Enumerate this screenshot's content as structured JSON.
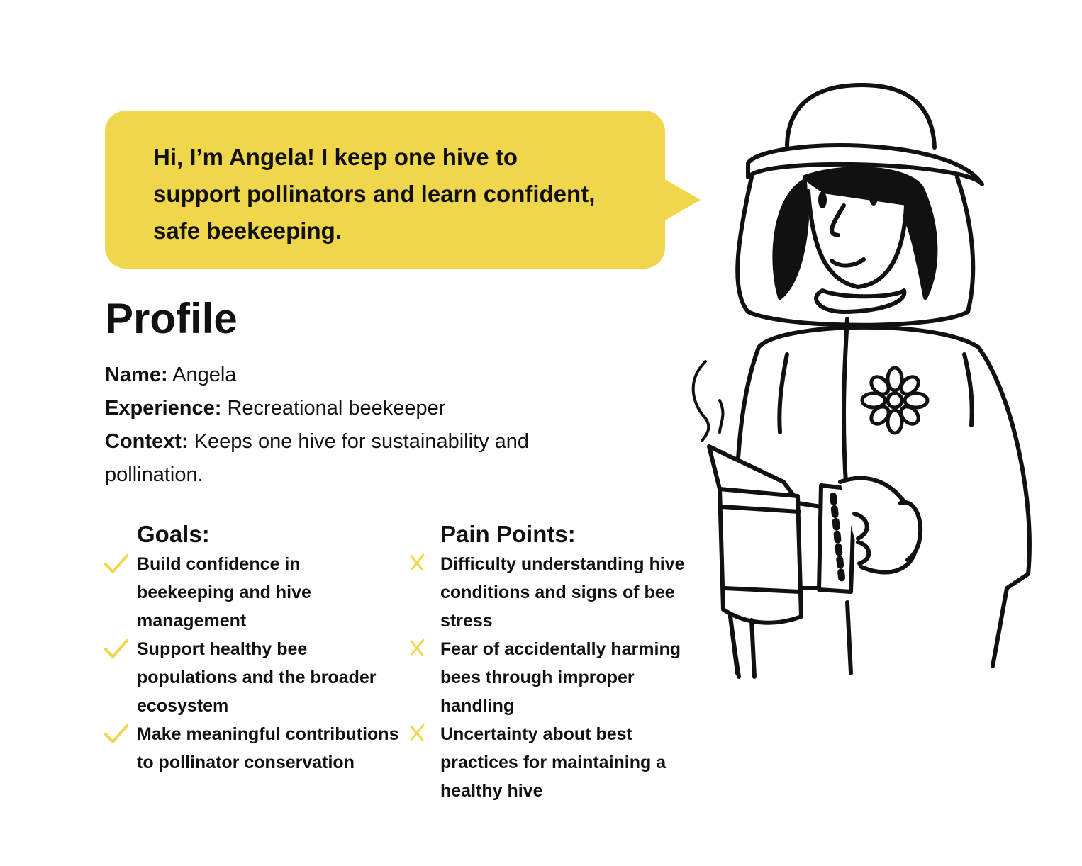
{
  "speech": {
    "text": "Hi, I’m Angela! I keep one hive to support pollinators and learn confident, safe beekeeping."
  },
  "profile": {
    "title": "Profile",
    "fields": [
      {
        "label": "Name:",
        "value": "Angela"
      },
      {
        "label": "Experience:",
        "value": "Recreational beekeeper"
      },
      {
        "label": "Context:",
        "value": "Keeps one hive for sustainability and pollination."
      }
    ]
  },
  "goals": {
    "heading": "Goals:",
    "icon": "check-icon",
    "items": [
      "Build confidence in beekeeping and hive management",
      "Support healthy bee populations and the broader ecosystem",
      "Make meaningful contributions to pollinator conservation"
    ]
  },
  "pain_points": {
    "heading": "Pain Points:",
    "icon": "x-mark-icon",
    "items": [
      "Difficulty understanding hive conditions and signs of bee stress",
      "Fear of accidentally harming bees through improper handling",
      "Uncertainty about best practices for maintaining a healthy hive"
    ]
  },
  "colors": {
    "accent": "#f0d64a",
    "text": "#111111",
    "background": "#ffffff"
  },
  "illustration": "beekeeper-illustration"
}
